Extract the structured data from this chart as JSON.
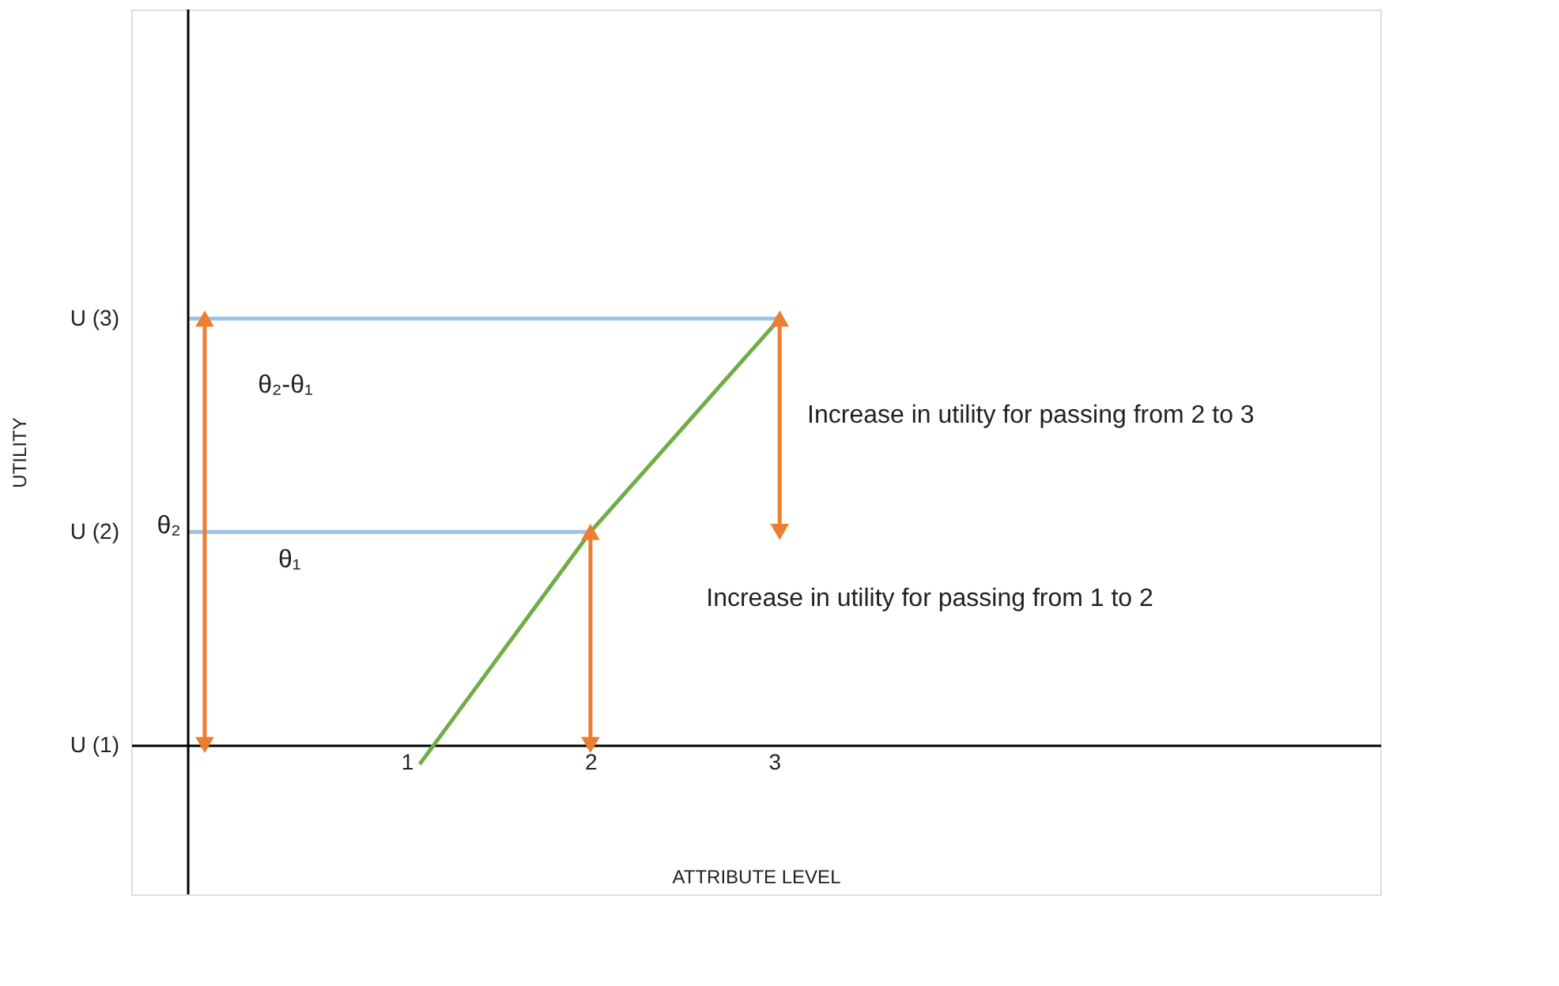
{
  "chart_data": {
    "type": "line",
    "xlabel": "ATTRIBUTE LEVEL",
    "ylabel": "UTILITY",
    "xlim": [
      -0.5,
      6.3
    ],
    "ylim": [
      0.3,
      4.45
    ],
    "xticks": [
      1,
      2,
      3
    ],
    "yticks": [
      {
        "value": 1,
        "label": "U (1)"
      },
      {
        "value": 2,
        "label": "U (2)"
      },
      {
        "value": 3,
        "label": "U (3)"
      }
    ],
    "grid": false,
    "line_style": "solid",
    "series": [
      {
        "color": "#70ad47",
        "x": [
          1.07,
          2,
          3.03
        ],
        "values": [
          0.91,
          2,
          3
        ],
        "marker": "none"
      },
      {
        "color": "#9dc3e6",
        "x": [
          -0.19,
          2
        ],
        "values": [
          2,
          2
        ],
        "marker": "none"
      },
      {
        "color": "#9dc3e6",
        "x": [
          -0.19,
          3.03
        ],
        "values": [
          3,
          3
        ],
        "marker": "none"
      },
      {
        "color": "#ed7d31",
        "x": [
          -0.1,
          -0.1
        ],
        "values": [
          1,
          3
        ],
        "marker": "triangle"
      },
      {
        "color": "#ed7d31",
        "x": [
          2,
          2
        ],
        "values": [
          1,
          2
        ],
        "marker": "triangle"
      },
      {
        "color": "#ed7d31",
        "x": [
          3.03,
          3.03
        ],
        "values": [
          2,
          3
        ],
        "marker": "triangle"
      }
    ],
    "ref_lines": [
      {
        "axis": "x",
        "value": -0.19,
        "color": "#000000"
      }
    ],
    "annotations": [
      "θ₂-θ₁",
      "θ₂",
      "θ₁",
      "Increase in utility for passing from 2 to 3",
      "Increase in utility for passing from 1 to 2"
    ]
  }
}
